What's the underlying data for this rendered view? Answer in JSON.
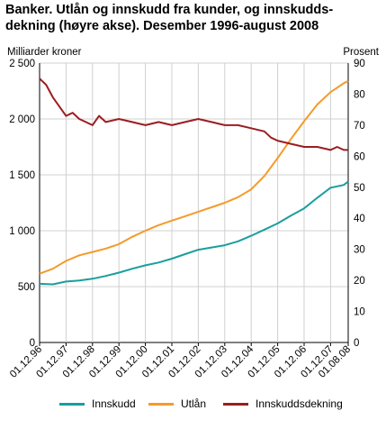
{
  "chart_data": {
    "type": "line",
    "title": "Banker. Utlån og innskudd fra kunder, og innskudds-dekning (høyre akse). Desember 1996-august 2008",
    "title_lines": [
      "Banker. Utlån og innskudd fra kunder, og innskudds-",
      "dekning (høyre akse). Desember 1996-august 2008"
    ],
    "ylabel_left": "Milliarder kroner",
    "ylabel_right": "Prosent",
    "ylim_left": [
      0,
      2500
    ],
    "ylim_right": [
      0,
      90
    ],
    "yticks_left": [
      "2 500",
      "2 000",
      "1 500",
      "1 000",
      "500",
      "0"
    ],
    "yticks_right": [
      "90",
      "80",
      "70",
      "60",
      "50",
      "40",
      "30",
      "20",
      "10",
      "0"
    ],
    "x_tick_labels": [
      "01.12.96",
      "01.12.97",
      "01.12.98",
      "01.12.99",
      "01.12.00",
      "01.12.01",
      "01.12.02",
      "01.12.03",
      "01.12.04",
      "01.12.05",
      "01.12.06",
      "01.12.07",
      "01.08.08"
    ],
    "x_tick_positions_years": [
      0,
      1,
      2,
      3,
      4,
      5,
      6,
      7,
      8,
      9,
      10,
      11,
      11.667
    ],
    "grid": true,
    "legend_position": "bottom",
    "series": [
      {
        "name": "Innskudd",
        "axis": "left",
        "color": "#1a9e9e",
        "x": [
          0,
          0.5,
          1,
          1.5,
          2,
          2.5,
          3,
          3.5,
          4,
          4.5,
          5,
          5.5,
          6,
          6.5,
          7,
          7.5,
          8,
          8.5,
          9,
          9.5,
          10,
          10.5,
          11,
          11.5,
          11.667
        ],
        "values": [
          525,
          520,
          545,
          555,
          570,
          595,
          625,
          660,
          690,
          715,
          750,
          790,
          830,
          850,
          870,
          905,
          955,
          1010,
          1065,
          1135,
          1200,
          1295,
          1385,
          1410,
          1440
        ]
      },
      {
        "name": "Utlån",
        "axis": "left",
        "color": "#f59a2a",
        "x": [
          0,
          0.5,
          1,
          1.5,
          2,
          2.5,
          3,
          3.5,
          4,
          4.5,
          5,
          5.5,
          6,
          6.5,
          7,
          7.5,
          8,
          8.5,
          9,
          9.5,
          10,
          10.5,
          11,
          11.5,
          11.667
        ],
        "values": [
          615,
          660,
          730,
          780,
          810,
          840,
          880,
          945,
          1000,
          1050,
          1090,
          1130,
          1170,
          1210,
          1250,
          1300,
          1370,
          1490,
          1650,
          1820,
          1980,
          2130,
          2240,
          2320,
          2340
        ]
      },
      {
        "name": "Innskuddsdekning",
        "axis": "right",
        "color": "#9b1d20",
        "x": [
          0,
          0.25,
          0.5,
          0.75,
          1,
          1.25,
          1.5,
          1.75,
          2,
          2.25,
          2.5,
          3,
          3.5,
          4,
          4.5,
          5,
          5.5,
          6,
          6.5,
          7,
          7.5,
          8,
          8.5,
          8.75,
          9,
          9.5,
          10,
          10.5,
          11,
          11.25,
          11.5,
          11.667
        ],
        "values": [
          85,
          83,
          79,
          76,
          73,
          74,
          72,
          71,
          70,
          73,
          71,
          72,
          71,
          70,
          71,
          70,
          71,
          72,
          71,
          70,
          70,
          69,
          68,
          66,
          65,
          64,
          63,
          63,
          62,
          63,
          62,
          62
        ]
      }
    ]
  },
  "legend": [
    {
      "label": "Innskudd",
      "color": "#1a9e9e"
    },
    {
      "label": "Utlån",
      "color": "#f59a2a"
    },
    {
      "label": "Innskuddsdekning",
      "color": "#9b1d20"
    }
  ]
}
